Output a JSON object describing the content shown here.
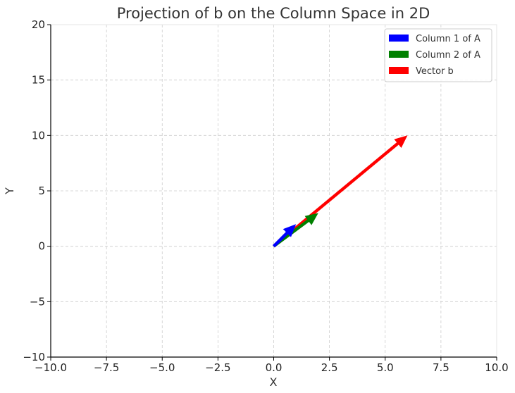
{
  "chart_data": {
    "type": "quiver",
    "title": "Projection of b on the Column Space in 2D",
    "xlabel": "X",
    "ylabel": "Y",
    "xlim": [
      -10,
      10
    ],
    "ylim": [
      -10,
      20
    ],
    "x_ticks": [
      -10,
      -7.5,
      -5,
      -2.5,
      0,
      2.5,
      5,
      7.5,
      10
    ],
    "x_tick_labels": [
      "−10.0",
      "−7.5",
      "−5.0",
      "−2.5",
      "0.0",
      "2.5",
      "5.0",
      "7.5",
      "10.0"
    ],
    "y_ticks": [
      -10,
      -5,
      0,
      5,
      10,
      15,
      20
    ],
    "y_tick_labels": [
      "−10",
      "−5",
      "0",
      "5",
      "10",
      "15",
      "20"
    ],
    "grid": true,
    "legend_position": "top-right",
    "series": [
      {
        "name": "Column 1 of A",
        "color": "#0000ff",
        "origin": [
          0,
          0
        ],
        "vector": [
          1,
          2
        ]
      },
      {
        "name": "Column 2 of A",
        "color": "#008000",
        "origin": [
          0,
          0
        ],
        "vector": [
          2,
          3
        ]
      },
      {
        "name": "Vector b",
        "color": "#ff0000",
        "origin": [
          0,
          0
        ],
        "vector": [
          6,
          10
        ]
      }
    ]
  }
}
